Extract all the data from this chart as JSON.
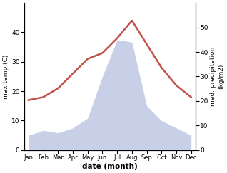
{
  "months": [
    "Jan",
    "Feb",
    "Mar",
    "Apr",
    "May",
    "Jun",
    "Jul",
    "Aug",
    "Sep",
    "Oct",
    "Nov",
    "Dec"
  ],
  "temperature": [
    17,
    18,
    21,
    26,
    31,
    33,
    38,
    44,
    36,
    28,
    22,
    18
  ],
  "precipitation": [
    6,
    8,
    7,
    9,
    13,
    30,
    45,
    44,
    18,
    12,
    9,
    6
  ],
  "temp_color": "#c0524a",
  "precip_fill_color": "#c8d0e8",
  "ylabel_left": "max temp (C)",
  "ylabel_right": "med. precipitation\n(kg/m2)",
  "xlabel": "date (month)",
  "ylim_left": [
    0,
    50
  ],
  "ylim_right": [
    0,
    60
  ],
  "yticks_left": [
    0,
    10,
    20,
    30,
    40
  ],
  "yticks_right": [
    0,
    10,
    20,
    30,
    40,
    50
  ],
  "background_color": "#ffffff"
}
